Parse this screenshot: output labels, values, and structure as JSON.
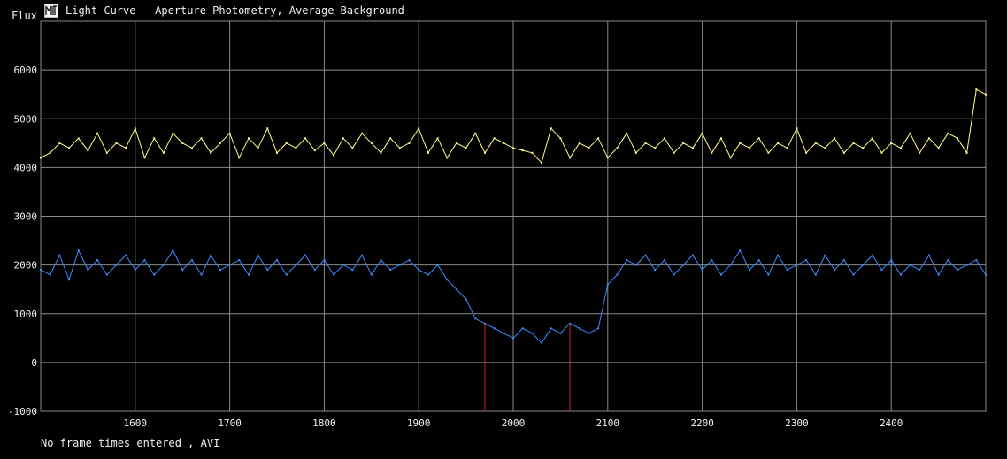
{
  "window": {
    "title": "Light Curve - Aperture Photometry, Average Background"
  },
  "status_text": "No frame times entered , AVI",
  "colors": {
    "background": "#000000",
    "grid": "#8a8a8a",
    "series_yellow": "#ffff88",
    "series_blue": "#3b8cff",
    "marker": "#e02020"
  },
  "chart_data": {
    "type": "line",
    "title": "Light Curve - Aperture Photometry, Average Background",
    "xlabel": "",
    "ylabel": "Flux",
    "xlim": [
      1500,
      2500
    ],
    "ylim": [
      -1000,
      7000
    ],
    "x_ticks": [
      1600,
      1700,
      1800,
      1900,
      2000,
      2100,
      2200,
      2300,
      2400
    ],
    "y_ticks": [
      -1000,
      0,
      1000,
      2000,
      3000,
      4000,
      5000,
      6000
    ],
    "grid": true,
    "markers": [
      1970,
      2060
    ],
    "series": [
      {
        "x_start": 1500,
        "x_step": 10,
        "values": [
          4200,
          4300,
          4500,
          4400,
          4600,
          4350,
          4700,
          4300,
          4500,
          4400,
          4800,
          4200,
          4600,
          4300,
          4700,
          4500,
          4400,
          4600,
          4300,
          4500,
          4700,
          4200,
          4600,
          4400,
          4800,
          4300,
          4500,
          4400,
          4600,
          4350,
          4500,
          4250,
          4600,
          4400,
          4700,
          4500,
          4300,
          4600,
          4400,
          4500,
          4800,
          4300,
          4600,
          4200,
          4500,
          4400,
          4700,
          4300,
          4600,
          4500,
          4400,
          4350,
          4300,
          4100,
          4800,
          4600,
          4200,
          4500,
          4400,
          4600,
          4200,
          4400,
          4700,
          4300,
          4500,
          4400,
          4600,
          4300,
          4500,
          4400,
          4700,
          4300,
          4600,
          4200,
          4500,
          4400,
          4600,
          4300,
          4500,
          4400,
          4800,
          4300,
          4500,
          4400,
          4600,
          4300,
          4500,
          4400,
          4600,
          4300,
          4500,
          4400,
          4700,
          4300,
          4600,
          4400,
          4700,
          4600,
          4300,
          5600,
          5500
        ]
      },
      {
        "x_start": 1500,
        "x_step": 10,
        "values": [
          1900,
          1800,
          2200,
          1700,
          2300,
          1900,
          2100,
          1800,
          2000,
          2200,
          1900,
          2100,
          1800,
          2000,
          2300,
          1900,
          2100,
          1800,
          2200,
          1900,
          2000,
          2100,
          1800,
          2200,
          1900,
          2100,
          1800,
          2000,
          2200,
          1900,
          2100,
          1800,
          2000,
          1900,
          2200,
          1800,
          2100,
          1900,
          2000,
          2100,
          1900,
          1800,
          2000,
          1700,
          1500,
          1300,
          900,
          800,
          700,
          600,
          500,
          700,
          600,
          400,
          700,
          600,
          800,
          700,
          600,
          700,
          1600,
          1800,
          2100,
          2000,
          2200,
          1900,
          2100,
          1800,
          2000,
          2200,
          1900,
          2100,
          1800,
          2000,
          2300,
          1900,
          2100,
          1800,
          2200,
          1900,
          2000,
          2100,
          1800,
          2200,
          1900,
          2100,
          1800,
          2000,
          2200,
          1900,
          2100,
          1800,
          2000,
          1900,
          2200,
          1800,
          2100,
          1900,
          2000,
          2100,
          1800
        ]
      }
    ]
  }
}
